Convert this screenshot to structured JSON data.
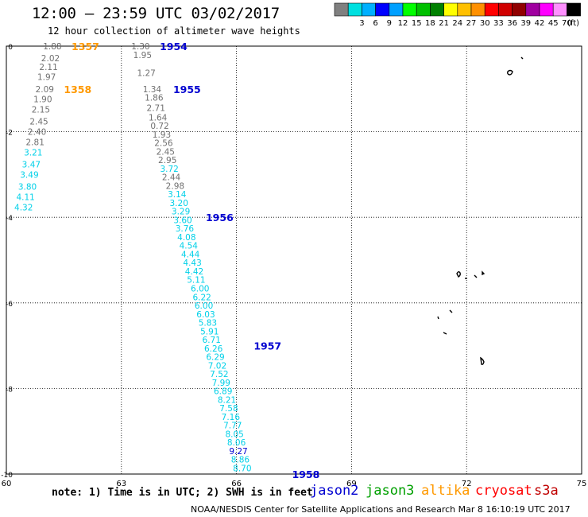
{
  "title": "12:00 — 23:59 UTC 03/02/2017",
  "subtitle": "12 hour collection of altimeter wave heights",
  "colorbar": {
    "unit": "(ft)",
    "bins": [
      {
        "label": "",
        "color": "#808080"
      },
      {
        "label": "3",
        "color": "#00e0e0"
      },
      {
        "label": "6",
        "color": "#00b0ff"
      },
      {
        "label": "9",
        "color": "#0000ff"
      },
      {
        "label": "12",
        "color": "#00a0ff"
      },
      {
        "label": "15",
        "color": "#00ff00"
      },
      {
        "label": "18",
        "color": "#00c000"
      },
      {
        "label": "21",
        "color": "#008000"
      },
      {
        "label": "24",
        "color": "#ffff00"
      },
      {
        "label": "27",
        "color": "#ffc000"
      },
      {
        "label": "30",
        "color": "#ff9000"
      },
      {
        "label": "33",
        "color": "#ff0000"
      },
      {
        "label": "36",
        "color": "#d00000"
      },
      {
        "label": "39",
        "color": "#900000"
      },
      {
        "label": "42",
        "color": "#a000a0"
      },
      {
        "label": "45",
        "color": "#ff00ff"
      },
      {
        "label": "70",
        "color": "#ff90ff"
      },
      {
        "label": "",
        "color": "#000000"
      }
    ]
  },
  "axes": {
    "lon_ticks": [
      "60",
      "63",
      "66",
      "69",
      "72",
      "75"
    ],
    "lat_ticks": [
      "0",
      "-2",
      "-4",
      "-6",
      "-8",
      "-10"
    ],
    "lon_range": [
      60,
      75
    ],
    "lat_range": [
      0,
      -10
    ]
  },
  "colors": {
    "gray": "#707070",
    "cyan": "#00d0e8",
    "blue": "#0000d0",
    "orange": "#ff9900",
    "green": "#00a000",
    "red": "#ff0000",
    "dark_red": "#c00000"
  },
  "altika_track": {
    "time_labels": [
      {
        "text": "1357",
        "lon": 61.7,
        "lat": 0.0
      },
      {
        "text": "1358",
        "lon": 61.5,
        "lat": -1.0
      }
    ],
    "points": [
      {
        "v": "1.88",
        "lon": 61.2,
        "lat": 0.0,
        "c": "gray"
      },
      {
        "v": "2.02",
        "lon": 61.15,
        "lat": -0.28,
        "c": "gray"
      },
      {
        "v": "2.11",
        "lon": 61.1,
        "lat": -0.48,
        "c": "gray"
      },
      {
        "v": "1.97",
        "lon": 61.05,
        "lat": -0.72,
        "c": "gray"
      },
      {
        "v": "2.09",
        "lon": 61.0,
        "lat": -1.0,
        "c": "gray"
      },
      {
        "v": "1.90",
        "lon": 60.95,
        "lat": -1.24,
        "c": "gray"
      },
      {
        "v": "2.15",
        "lon": 60.9,
        "lat": -1.48,
        "c": "gray"
      },
      {
        "v": "2.45",
        "lon": 60.85,
        "lat": -1.76,
        "c": "gray"
      },
      {
        "v": "2.40",
        "lon": 60.8,
        "lat": -2.0,
        "c": "gray"
      },
      {
        "v": "2.81",
        "lon": 60.75,
        "lat": -2.24,
        "c": "gray"
      },
      {
        "v": "3.21",
        "lon": 60.7,
        "lat": -2.48,
        "c": "cyan"
      },
      {
        "v": "3.47",
        "lon": 60.65,
        "lat": -2.76,
        "c": "cyan"
      },
      {
        "v": "3.49",
        "lon": 60.6,
        "lat": -3.0,
        "c": "cyan"
      },
      {
        "v": "3.80",
        "lon": 60.55,
        "lat": -3.28,
        "c": "cyan"
      },
      {
        "v": "4.11",
        "lon": 60.5,
        "lat": -3.52,
        "c": "cyan"
      },
      {
        "v": "4.32",
        "lon": 60.45,
        "lat": -3.76,
        "c": "cyan"
      }
    ]
  },
  "jason2_track": {
    "time_labels": [
      {
        "text": "1954",
        "lon": 64.0,
        "lat": 0.0
      },
      {
        "text": "1955",
        "lon": 64.35,
        "lat": -1.0
      },
      {
        "text": "1956",
        "lon": 65.2,
        "lat": -4.0
      },
      {
        "text": "1957",
        "lon": 66.45,
        "lat": -7.0
      },
      {
        "text": "1958",
        "lon": 67.45,
        "lat": -10.0
      }
    ],
    "points": [
      {
        "v": "1.30",
        "lon": 63.5,
        "lat": 0.0,
        "c": "gray"
      },
      {
        "v": "1.95",
        "lon": 63.55,
        "lat": -0.2,
        "c": "gray"
      },
      {
        "v": "1.27",
        "lon": 63.65,
        "lat": -0.62,
        "c": "gray"
      },
      {
        "v": "1.34",
        "lon": 63.8,
        "lat": -1.0,
        "c": "gray"
      },
      {
        "v": "1.86",
        "lon": 63.85,
        "lat": -1.2,
        "c": "gray"
      },
      {
        "v": "2.71",
        "lon": 63.9,
        "lat": -1.44,
        "c": "gray"
      },
      {
        "v": "1.64",
        "lon": 63.95,
        "lat": -1.66,
        "c": "gray"
      },
      {
        "v": "0.72",
        "lon": 64.0,
        "lat": -1.86,
        "c": "gray"
      },
      {
        "v": "1.93",
        "lon": 64.05,
        "lat": -2.06,
        "c": "gray"
      },
      {
        "v": "2.56",
        "lon": 64.1,
        "lat": -2.26,
        "c": "gray"
      },
      {
        "v": "2.45",
        "lon": 64.15,
        "lat": -2.46,
        "c": "gray"
      },
      {
        "v": "2.95",
        "lon": 64.2,
        "lat": -2.66,
        "c": "gray"
      },
      {
        "v": "3.72",
        "lon": 64.25,
        "lat": -2.86,
        "c": "cyan"
      },
      {
        "v": "2.44",
        "lon": 64.3,
        "lat": -3.06,
        "c": "gray"
      },
      {
        "v": "2.98",
        "lon": 64.4,
        "lat": -3.26,
        "c": "gray"
      },
      {
        "v": "3.14",
        "lon": 64.45,
        "lat": -3.46,
        "c": "cyan"
      },
      {
        "v": "3.20",
        "lon": 64.5,
        "lat": -3.66,
        "c": "cyan"
      },
      {
        "v": "3.29",
        "lon": 64.55,
        "lat": -3.86,
        "c": "cyan"
      },
      {
        "v": "3.60",
        "lon": 64.6,
        "lat": -4.06,
        "c": "cyan"
      },
      {
        "v": "3.76",
        "lon": 64.65,
        "lat": -4.26,
        "c": "cyan"
      },
      {
        "v": "4.08",
        "lon": 64.7,
        "lat": -4.46,
        "c": "cyan"
      },
      {
        "v": "4.54",
        "lon": 64.75,
        "lat": -4.66,
        "c": "cyan"
      },
      {
        "v": "4.44",
        "lon": 64.8,
        "lat": -4.86,
        "c": "cyan"
      },
      {
        "v": "4.43",
        "lon": 64.85,
        "lat": -5.06,
        "c": "cyan"
      },
      {
        "v": "4.42",
        "lon": 64.9,
        "lat": -5.26,
        "c": "cyan"
      },
      {
        "v": "5.11",
        "lon": 64.95,
        "lat": -5.46,
        "c": "cyan"
      },
      {
        "v": "6.00",
        "lon": 65.05,
        "lat": -5.66,
        "c": "cyan"
      },
      {
        "v": "6.22",
        "lon": 65.1,
        "lat": -5.86,
        "c": "cyan"
      },
      {
        "v": "6.00",
        "lon": 65.15,
        "lat": -6.06,
        "c": "cyan"
      },
      {
        "v": "6.03",
        "lon": 65.2,
        "lat": -6.26,
        "c": "cyan"
      },
      {
        "v": "5.83",
        "lon": 65.25,
        "lat": -6.46,
        "c": "cyan"
      },
      {
        "v": "5.91",
        "lon": 65.3,
        "lat": -6.66,
        "c": "cyan"
      },
      {
        "v": "6.71",
        "lon": 65.35,
        "lat": -6.86,
        "c": "cyan"
      },
      {
        "v": "6.26",
        "lon": 65.4,
        "lat": -7.06,
        "c": "cyan"
      },
      {
        "v": "6.29",
        "lon": 65.45,
        "lat": -7.26,
        "c": "cyan"
      },
      {
        "v": "7.02",
        "lon": 65.5,
        "lat": -7.46,
        "c": "cyan"
      },
      {
        "v": "7.52",
        "lon": 65.55,
        "lat": -7.66,
        "c": "cyan"
      },
      {
        "v": "7.99",
        "lon": 65.6,
        "lat": -7.86,
        "c": "cyan"
      },
      {
        "v": "6.89",
        "lon": 65.65,
        "lat": -8.06,
        "c": "cyan"
      },
      {
        "v": "8.21",
        "lon": 65.75,
        "lat": -8.26,
        "c": "cyan"
      },
      {
        "v": "7.58",
        "lon": 65.8,
        "lat": -8.46,
        "c": "cyan"
      },
      {
        "v": "7.16",
        "lon": 65.85,
        "lat": -8.66,
        "c": "cyan"
      },
      {
        "v": "7.77",
        "lon": 65.9,
        "lat": -8.86,
        "c": "cyan"
      },
      {
        "v": "8.05",
        "lon": 65.95,
        "lat": -9.06,
        "c": "cyan"
      },
      {
        "v": "8.06",
        "lon": 66.0,
        "lat": -9.26,
        "c": "cyan"
      },
      {
        "v": "9.27",
        "lon": 66.05,
        "lat": -9.46,
        "c": "blue"
      },
      {
        "v": "8.86",
        "lon": 66.1,
        "lat": -9.66,
        "c": "cyan"
      },
      {
        "v": "8.70",
        "lon": 66.15,
        "lat": -9.86,
        "c": "cyan"
      }
    ]
  },
  "note": "note: 1) Time is in UTC; 2) SWH is in feet",
  "satellites": [
    {
      "name": "jason2",
      "color": "#0000d0"
    },
    {
      "name": "jason3",
      "color": "#00a000"
    },
    {
      "name": "altika",
      "color": "#ff9900"
    },
    {
      "name": "cryosat",
      "color": "#ff0000"
    },
    {
      "name": "s3a",
      "color": "#c00000"
    }
  ],
  "credit": "NOAA/NESDIS Center for Satellite Applications and Research   Mar  8 16:10:19 UTC 2017"
}
